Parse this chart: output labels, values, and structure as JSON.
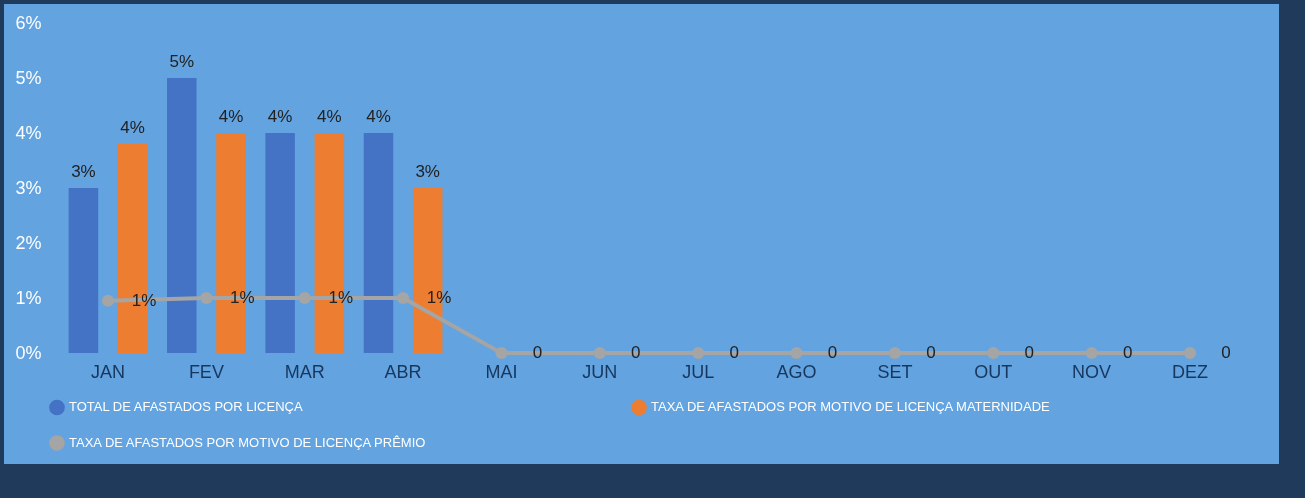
{
  "chart_data": {
    "type": "bar",
    "categories": [
      "JAN",
      "FEV",
      "MAR",
      "ABR",
      "MAI",
      "JUN",
      "JUL",
      "AGO",
      "SET",
      "OUT",
      "NOV",
      "DEZ"
    ],
    "series": [
      {
        "name": "TOTAL DE AFASTADOS POR LICENÇA",
        "color": "#4472c4",
        "values": [
          3,
          5,
          4,
          4,
          null,
          null,
          null,
          null,
          null,
          null,
          null,
          null
        ],
        "value_labels": [
          "3%",
          "5%",
          "4%",
          "4%",
          null,
          null,
          null,
          null,
          null,
          null,
          null,
          null
        ]
      },
      {
        "name": "TAXA DE AFASTADOS POR MOTIVO DE LICENÇA MATERNIDADE",
        "color": "#ed7d31",
        "values": [
          3.8,
          4,
          4,
          3,
          null,
          null,
          null,
          null,
          null,
          null,
          null,
          null
        ],
        "value_labels": [
          "4%",
          "4%",
          "4%",
          "3%",
          null,
          null,
          null,
          null,
          null,
          null,
          null,
          null
        ]
      },
      {
        "name": "TAXA DE AFASTADOS POR MOTIVO DE LICENÇA PRÊMIO",
        "type": "line",
        "color": "#a5a5a5",
        "values": [
          0.95,
          1,
          1,
          1,
          0,
          0,
          0,
          0,
          0,
          0,
          0,
          0
        ],
        "value_labels": [
          "1%",
          "1%",
          "1%",
          "1%",
          "0",
          "0",
          "0",
          "0",
          "0",
          "0",
          "0",
          "0"
        ]
      }
    ],
    "ylim": [
      0,
      6
    ],
    "yticks": [
      {
        "value": 0,
        "label": "0%"
      },
      {
        "value": 1,
        "label": "1%"
      },
      {
        "value": 2,
        "label": "2%"
      },
      {
        "value": 3,
        "label": "3%"
      },
      {
        "value": 4,
        "label": "4%"
      },
      {
        "value": 5,
        "label": "5%"
      },
      {
        "value": 6,
        "label": "6%"
      }
    ],
    "grid": false,
    "legend": "bottom",
    "marker": "circle",
    "line_style": "solid"
  }
}
